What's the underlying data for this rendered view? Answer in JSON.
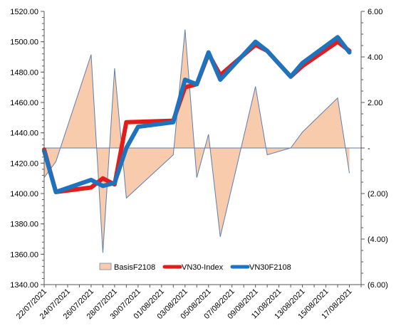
{
  "chart_data": {
    "type": "line",
    "x": [
      "22/07/2021",
      "23/07/2021",
      "26/07/2021",
      "27/07/2021",
      "28/07/2021",
      "29/07/2021",
      "30/07/2021",
      "02/08/2021",
      "03/08/2021",
      "04/08/2021",
      "05/08/2021",
      "06/08/2021",
      "09/08/2021",
      "10/08/2021",
      "11/08/2021",
      "12/08/2021",
      "13/08/2021",
      "16/08/2021",
      "17/08/2021",
      "18/08/2021"
    ],
    "x_tick_labels": [
      "22/07/2021",
      "24/07/2021",
      "26/07/2021",
      "28/07/2021",
      "30/07/2021",
      "01/08/2021",
      "03/08/2021",
      "05/08/2021",
      "07/08/2021",
      "09/08/2021",
      "11/08/2021",
      "13/08/2021",
      "15/08/2021",
      "17/08/2021"
    ],
    "x_range": [
      "22/07/2021",
      "18/08/2021"
    ],
    "y_left": {
      "ylim": [
        1340,
        1520
      ],
      "ticks": [
        "1340.00",
        "1360.00",
        "1380.00",
        "1400.00",
        "1420.00",
        "1440.00",
        "1460.00",
        "1480.00",
        "1500.00",
        "1520.00"
      ]
    },
    "y_right": {
      "ylim": [
        -6,
        6
      ],
      "ticks": [
        "(6.00)",
        "(4.00)",
        "(2.00)",
        "-",
        "2.00",
        "4.00",
        "6.00"
      ]
    },
    "legend_position": "bottom-center",
    "series": [
      {
        "name": "BasisF2108",
        "kind": "area",
        "axis": "right",
        "color": "#f8cbad",
        "line_color": "#5b7fb0",
        "points": [
          {
            "x": "22/07/2021",
            "y": -1.3
          },
          {
            "x": "23/07/2021",
            "y": -0.6
          },
          {
            "x": "26/07/2021",
            "y": 4.1
          },
          {
            "x": "27/07/2021",
            "y": -4.6
          },
          {
            "x": "28/07/2021",
            "y": 3.5
          },
          {
            "x": "29/07/2021",
            "y": -2.2
          },
          {
            "x": "02/08/2021",
            "y": -0.3
          },
          {
            "x": "03/08/2021",
            "y": 5.2
          },
          {
            "x": "04/08/2021",
            "y": -1.3
          },
          {
            "x": "05/08/2021",
            "y": 0.6
          },
          {
            "x": "06/08/2021",
            "y": -3.9
          },
          {
            "x": "09/08/2021",
            "y": 2.7
          },
          {
            "x": "10/08/2021",
            "y": -0.3
          },
          {
            "x": "12/08/2021",
            "y": 0
          },
          {
            "x": "13/08/2021",
            "y": 0.7
          },
          {
            "x": "16/08/2021",
            "y": 2.2
          },
          {
            "x": "17/08/2021",
            "y": -1.1
          }
        ]
      },
      {
        "name": "VN30-Index",
        "kind": "line",
        "axis": "left",
        "color": "#e31b1b",
        "points": [
          {
            "x": "22/07/2021",
            "y": 1429
          },
          {
            "x": "23/07/2021",
            "y": 1401
          },
          {
            "x": "26/07/2021",
            "y": 1404
          },
          {
            "x": "27/07/2021",
            "y": 1410
          },
          {
            "x": "28/07/2021",
            "y": 1406
          },
          {
            "x": "29/07/2021",
            "y": 1447
          },
          {
            "x": "02/08/2021",
            "y": 1448
          },
          {
            "x": "03/08/2021",
            "y": 1470
          },
          {
            "x": "04/08/2021",
            "y": 1472
          },
          {
            "x": "05/08/2021",
            "y": 1492
          },
          {
            "x": "06/08/2021",
            "y": 1478
          },
          {
            "x": "09/08/2021",
            "y": 1498
          },
          {
            "x": "10/08/2021",
            "y": 1494
          },
          {
            "x": "12/08/2021",
            "y": 1477
          },
          {
            "x": "13/08/2021",
            "y": 1484
          },
          {
            "x": "16/08/2021",
            "y": 1500
          },
          {
            "x": "17/08/2021",
            "y": 1494
          }
        ]
      },
      {
        "name": "VN30F2108",
        "kind": "line",
        "axis": "left",
        "color": "#1e73be",
        "points": [
          {
            "x": "22/07/2021",
            "y": 1428
          },
          {
            "x": "23/07/2021",
            "y": 1401
          },
          {
            "x": "26/07/2021",
            "y": 1409
          },
          {
            "x": "27/07/2021",
            "y": 1405
          },
          {
            "x": "28/07/2021",
            "y": 1407
          },
          {
            "x": "29/07/2021",
            "y": 1430
          },
          {
            "x": "30/07/2021",
            "y": 1444
          },
          {
            "x": "02/08/2021",
            "y": 1447
          },
          {
            "x": "03/08/2021",
            "y": 1475
          },
          {
            "x": "04/08/2021",
            "y": 1472
          },
          {
            "x": "05/08/2021",
            "y": 1493
          },
          {
            "x": "06/08/2021",
            "y": 1475
          },
          {
            "x": "09/08/2021",
            "y": 1500
          },
          {
            "x": "10/08/2021",
            "y": 1494
          },
          {
            "x": "12/08/2021",
            "y": 1477
          },
          {
            "x": "13/08/2021",
            "y": 1486
          },
          {
            "x": "16/08/2021",
            "y": 1503
          },
          {
            "x": "17/08/2021",
            "y": 1493
          }
        ]
      }
    ]
  }
}
